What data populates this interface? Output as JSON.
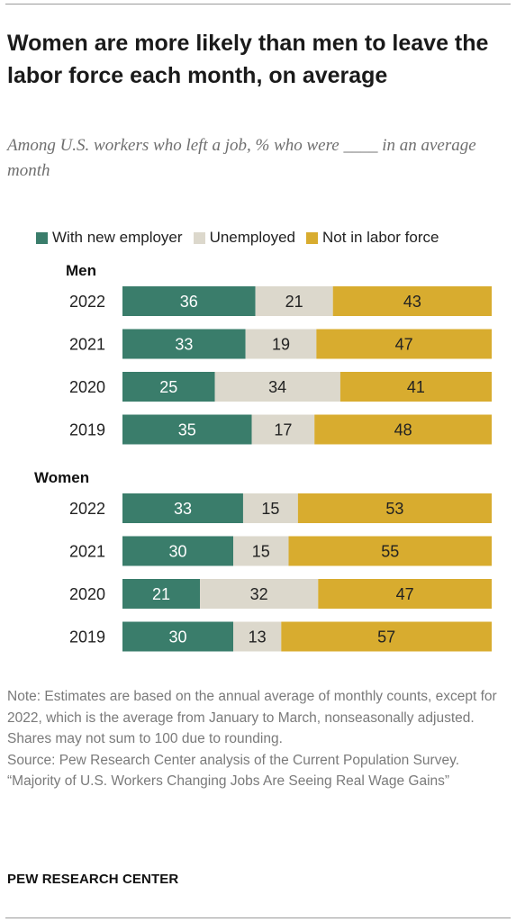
{
  "title": "Women are more likely than men to leave the labor force each month, on average",
  "subtitle": "Among U.S. workers who left a job, % who were ____ in an average month",
  "colors": {
    "with_new_employer": "#3a7d6b",
    "unemployed": "#dcd8cc",
    "not_in_labor_force": "#d8ac2f",
    "label_dark_bg": "#ffffff",
    "label_light_bg": "#222222"
  },
  "legend": {
    "with_new_employer": "With new employer",
    "unemployed": "Unemployed",
    "not_in_labor_force": "Not in labor force"
  },
  "chart_data": {
    "type": "bar",
    "stacked": true,
    "orientation": "horizontal",
    "xlim": [
      0,
      100
    ],
    "groups": [
      {
        "name": "Men",
        "categories": [
          "2022",
          "2021",
          "2020",
          "2019"
        ],
        "series": [
          {
            "name": "With new employer",
            "values": [
              36,
              33,
              25,
              35
            ]
          },
          {
            "name": "Unemployed",
            "values": [
              21,
              19,
              34,
              17
            ]
          },
          {
            "name": "Not in labor force",
            "values": [
              43,
              47,
              41,
              48
            ]
          }
        ]
      },
      {
        "name": "Women",
        "categories": [
          "2022",
          "2021",
          "2020",
          "2019"
        ],
        "series": [
          {
            "name": "With new employer",
            "values": [
              33,
              30,
              21,
              30
            ]
          },
          {
            "name": "Unemployed",
            "values": [
              15,
              15,
              32,
              13
            ]
          },
          {
            "name": "Not in labor force",
            "values": [
              53,
              55,
              47,
              57
            ]
          }
        ]
      }
    ]
  },
  "notes": {
    "note": "Note: Estimates are based on the annual average of monthly counts, except for 2022, which is the average from January to March, nonseasonally adjusted. Shares may not sum to 100 due to rounding.",
    "source": "Source: Pew Research Center analysis of the Current Population Survey.",
    "report": "“Majority of U.S. Workers Changing Jobs Are Seeing Real Wage Gains”"
  },
  "brand": "PEW RESEARCH CENTER"
}
